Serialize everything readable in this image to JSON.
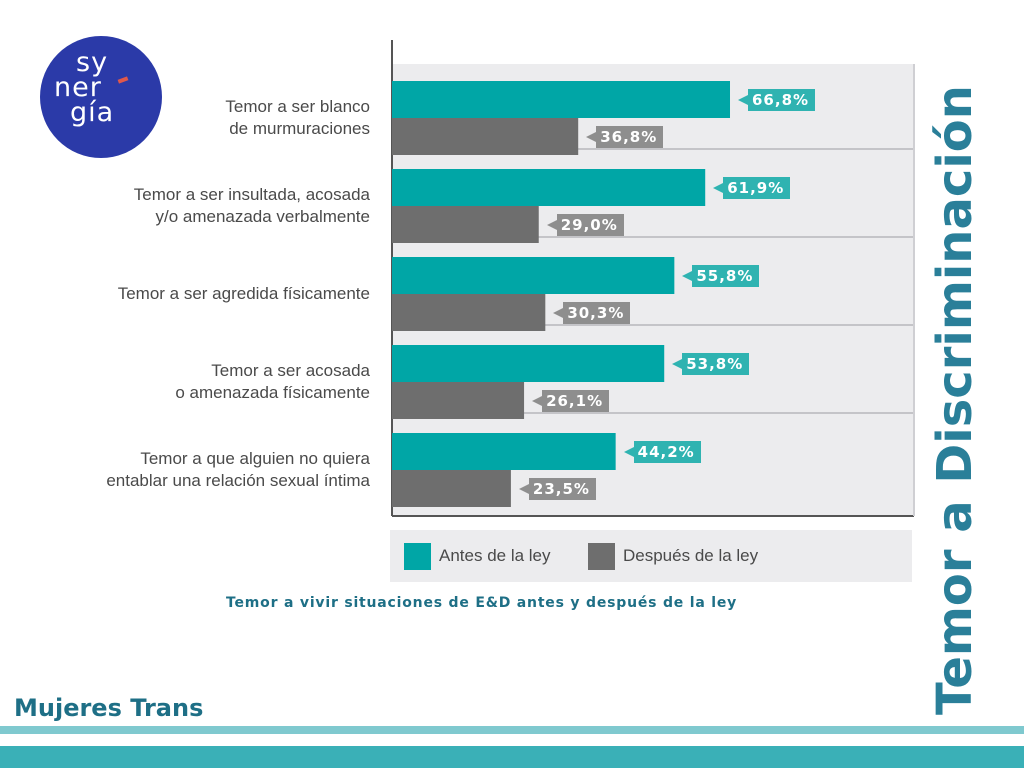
{
  "logo": {
    "line1": "sy",
    "line2": "ner",
    "line3": "gía"
  },
  "side_title": "Temor a Discriminación",
  "footer_title": "Mujeres Trans",
  "caption": "Temor a vivir situaciones de E&D antes y después de la ley",
  "colors": {
    "before": "#00a6a6",
    "after": "#6e6e6e",
    "tag_before": "#2fb3b1",
    "tag_after": "#8e8e8e",
    "panel": "#ececee",
    "title": "#2a7f99"
  },
  "chart_data": {
    "type": "bar",
    "orientation": "horizontal",
    "categories": [
      "Temor a ser blanco\nde murmuraciones",
      "Temor a ser insultada, acosada\ny/o amenazada verbalmente",
      "Temor a ser agredida físicamente",
      "Temor a ser acosada\no amenazada físicamente",
      "Temor a que alguien no quiera\nentablar una relación sexual íntima"
    ],
    "series": [
      {
        "name": "Antes de la ley",
        "values": [
          66.8,
          61.9,
          55.8,
          53.8,
          44.2
        ],
        "labels": [
          "66,8%",
          "61,9%",
          "55,8%",
          "53,8%",
          "44,2%"
        ]
      },
      {
        "name": "Después de la ley",
        "values": [
          36.8,
          29.0,
          30.3,
          26.1,
          23.5
        ],
        "labels": [
          "36,8%",
          "29,0%",
          "30,3%",
          "26,1%",
          "23,5%"
        ]
      }
    ],
    "xlim": [
      0,
      100
    ],
    "grid": false,
    "legend": "bottom"
  }
}
